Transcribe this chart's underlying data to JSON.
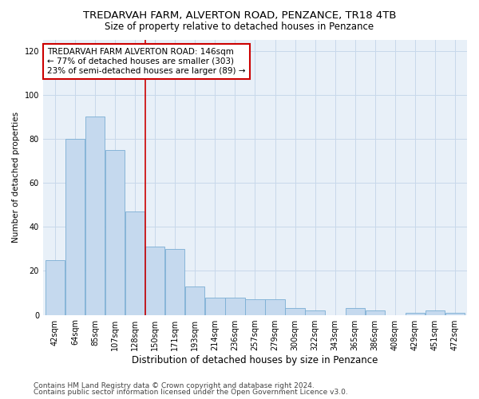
{
  "title": "TREDARVAH FARM, ALVERTON ROAD, PENZANCE, TR18 4TB",
  "subtitle": "Size of property relative to detached houses in Penzance",
  "xlabel": "Distribution of detached houses by size in Penzance",
  "ylabel": "Number of detached properties",
  "categories": [
    "42sqm",
    "64sqm",
    "85sqm",
    "107sqm",
    "128sqm",
    "150sqm",
    "171sqm",
    "193sqm",
    "214sqm",
    "236sqm",
    "257sqm",
    "279sqm",
    "300sqm",
    "322sqm",
    "343sqm",
    "365sqm",
    "386sqm",
    "408sqm",
    "429sqm",
    "451sqm",
    "472sqm"
  ],
  "values": [
    25,
    80,
    90,
    75,
    47,
    31,
    30,
    13,
    8,
    8,
    7,
    7,
    3,
    2,
    0,
    3,
    2,
    0,
    1,
    2,
    1
  ],
  "bar_color": "#c5d9ee",
  "bar_edge_color": "#7aaed4",
  "grid_color": "#c8d8ea",
  "background_color": "#ffffff",
  "plot_bg_color": "#e8f0f8",
  "vline_x": 4.5,
  "vline_color": "#cc0000",
  "annotation_text": "TREDARVAH FARM ALVERTON ROAD: 146sqm\n← 77% of detached houses are smaller (303)\n23% of semi-detached houses are larger (89) →",
  "annotation_box_color": "#ffffff",
  "annotation_box_edge": "#cc0000",
  "ylim": [
    0,
    125
  ],
  "yticks": [
    0,
    20,
    40,
    60,
    80,
    100,
    120
  ],
  "footer1": "Contains HM Land Registry data © Crown copyright and database right 2024.",
  "footer2": "Contains public sector information licensed under the Open Government Licence v3.0.",
  "title_fontsize": 9.5,
  "subtitle_fontsize": 8.5,
  "xlabel_fontsize": 8.5,
  "ylabel_fontsize": 7.5,
  "tick_fontsize": 7,
  "annotation_fontsize": 7.5,
  "footer_fontsize": 6.5
}
